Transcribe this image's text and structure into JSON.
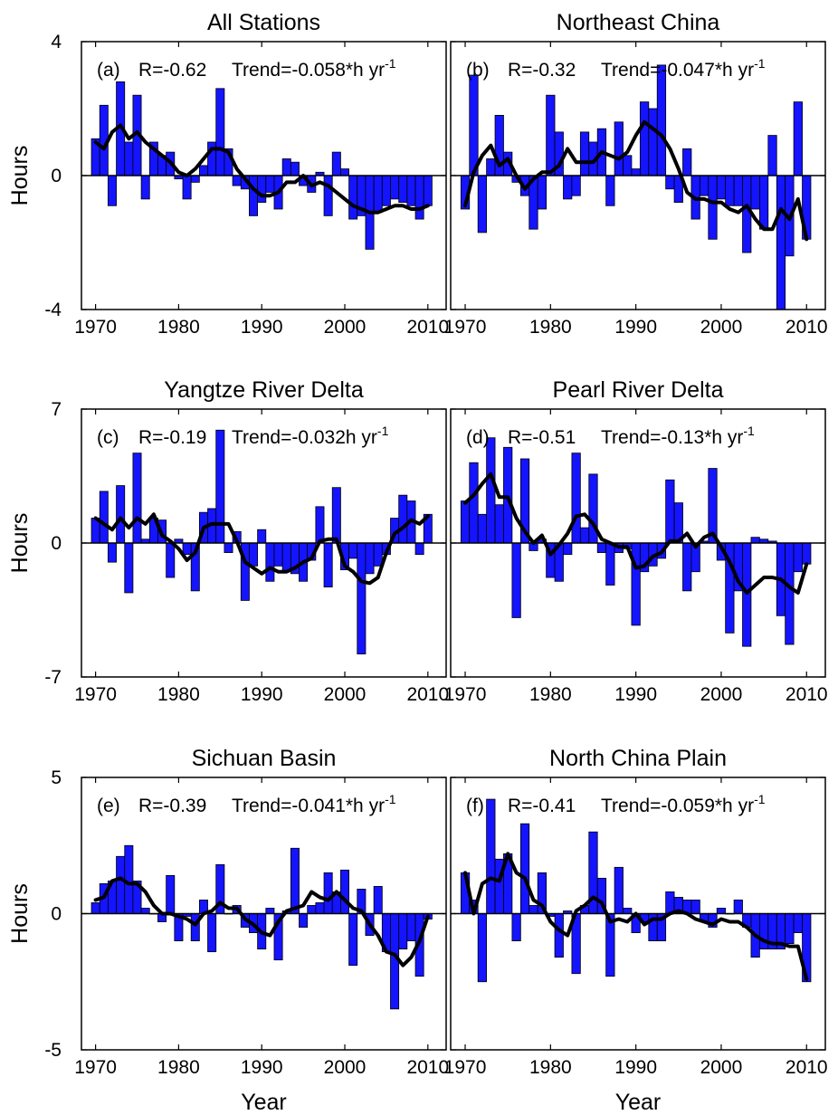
{
  "colors": {
    "bar": "#1414ff",
    "bar_edge": "#000000",
    "line": "#000000",
    "frame": "#000000",
    "zero": "#000000"
  },
  "chart_data": [
    {
      "type": "bar",
      "title": "All Stations",
      "panel": "(a)",
      "r_text": "R=-0.62",
      "trend_text": "Trend=-0.058*h yr",
      "trend_sup": "-1",
      "xlabel": "",
      "ylabel": "Hours",
      "xlim": [
        1968.5,
        1969.5
      ],
      "ylim": [
        -4,
        4
      ],
      "yticks": [
        -4,
        0,
        4
      ],
      "xticks": [
        1970,
        1980,
        1990,
        2000,
        2010
      ],
      "x": [
        1970,
        1971,
        1972,
        1973,
        1974,
        1975,
        1976,
        1977,
        1978,
        1979,
        1980,
        1981,
        1982,
        1983,
        1984,
        1985,
        1986,
        1987,
        1988,
        1989,
        1990,
        1991,
        1992,
        1993,
        1994,
        1995,
        1996,
        1997,
        1998,
        1999,
        2000,
        2001,
        2002,
        2003,
        2004,
        2005,
        2006,
        2007,
        2008,
        2009,
        2010
      ],
      "series": [
        {
          "kind": "bar",
          "values": [
            1.1,
            2.1,
            -0.9,
            2.8,
            1.0,
            2.4,
            -0.7,
            1.0,
            0.6,
            0.7,
            -0.1,
            -0.7,
            -0.2,
            0.3,
            1.0,
            2.6,
            0.8,
            -0.3,
            -0.4,
            -1.2,
            -0.8,
            -0.5,
            -1.0,
            0.5,
            0.4,
            -0.3,
            -0.5,
            0.1,
            -1.2,
            0.7,
            0.2,
            -1.3,
            -1.2,
            -2.2,
            -1.1,
            -0.9,
            -0.7,
            -0.8,
            -0.9,
            -1.3,
            -0.9
          ]
        },
        {
          "kind": "line",
          "values": [
            1.0,
            0.8,
            1.3,
            1.5,
            1.1,
            1.3,
            1.0,
            0.8,
            0.6,
            0.4,
            0.1,
            0.0,
            0.2,
            0.5,
            0.8,
            0.8,
            0.7,
            0.2,
            -0.1,
            -0.4,
            -0.6,
            -0.6,
            -0.5,
            -0.2,
            -0.2,
            0.0,
            -0.3,
            -0.2,
            -0.3,
            -0.5,
            -0.7,
            -0.9,
            -1.0,
            -1.1,
            -1.1,
            -1.0,
            -0.9,
            -0.9,
            -1.0,
            -1.0,
            -0.9
          ]
        }
      ]
    },
    {
      "type": "bar",
      "title": "Northeast China",
      "panel": "(b)",
      "r_text": "R=-0.32",
      "trend_text": "Trend=-0.047*h yr",
      "trend_sup": "-1",
      "xlabel": "",
      "ylabel": "",
      "xlim": [
        1968.5,
        1969.5
      ],
      "ylim": [
        -4,
        4
      ],
      "yticks": [],
      "xticks": [
        1970,
        1980,
        1990,
        2000,
        2010
      ],
      "x": [
        1970,
        1971,
        1972,
        1973,
        1974,
        1975,
        1976,
        1977,
        1978,
        1979,
        1980,
        1981,
        1982,
        1983,
        1984,
        1985,
        1986,
        1987,
        1988,
        1989,
        1990,
        1991,
        1992,
        1993,
        1994,
        1995,
        1996,
        1997,
        1998,
        1999,
        2000,
        2001,
        2002,
        2003,
        2004,
        2005,
        2006,
        2007,
        2008,
        2009,
        2010
      ],
      "series": [
        {
          "kind": "bar",
          "values": [
            -1.0,
            3.0,
            -1.7,
            0.5,
            1.8,
            0.7,
            -0.2,
            -0.6,
            -1.6,
            -1.0,
            2.4,
            1.3,
            -0.7,
            -0.6,
            1.3,
            1.0,
            1.4,
            -0.9,
            1.6,
            0.6,
            0.2,
            2.2,
            2.0,
            3.3,
            -0.4,
            -0.8,
            0.8,
            -1.3,
            -0.6,
            -1.9,
            -0.7,
            -0.9,
            -0.9,
            -2.3,
            -1.0,
            -1.6,
            1.2,
            -4.0,
            -2.4,
            2.2,
            -1.9
          ]
        },
        {
          "kind": "line",
          "values": [
            -0.9,
            0.1,
            0.6,
            0.9,
            0.3,
            0.5,
            0.0,
            -0.4,
            -0.1,
            0.1,
            0.1,
            0.3,
            0.8,
            0.4,
            0.4,
            0.4,
            0.7,
            0.6,
            0.5,
            0.7,
            1.2,
            1.6,
            1.4,
            1.2,
            0.8,
            0.2,
            -0.5,
            -0.7,
            -0.7,
            -0.8,
            -0.8,
            -1.0,
            -1.1,
            -0.9,
            -1.3,
            -1.6,
            -1.6,
            -1.0,
            -1.3,
            -0.7,
            -1.9
          ]
        }
      ]
    },
    {
      "type": "bar",
      "title": "Yangtze River Delta",
      "panel": "(c)",
      "r_text": "R=-0.19",
      "trend_text": "Trend=-0.032h yr",
      "trend_sup": "-1",
      "xlabel": "",
      "ylabel": "Hours",
      "xlim": [
        1968.5,
        1969.5
      ],
      "ylim": [
        -7,
        7
      ],
      "yticks": [
        -7,
        0,
        7
      ],
      "xticks": [
        1970,
        1980,
        1990,
        2000,
        2010
      ],
      "x": [
        1970,
        1971,
        1972,
        1973,
        1974,
        1975,
        1976,
        1977,
        1978,
        1979,
        1980,
        1981,
        1982,
        1983,
        1984,
        1985,
        1986,
        1987,
        1988,
        1989,
        1990,
        1991,
        1992,
        1993,
        1994,
        1995,
        1996,
        1997,
        1998,
        1999,
        2000,
        2001,
        2002,
        2003,
        2004,
        2005,
        2006,
        2007,
        2008,
        2009,
        2010
      ],
      "series": [
        {
          "kind": "bar",
          "values": [
            1.3,
            2.7,
            -1.0,
            3.0,
            -2.6,
            4.7,
            0.2,
            1.3,
            1.2,
            -1.8,
            0.2,
            -0.6,
            -2.5,
            1.6,
            1.8,
            5.9,
            -0.5,
            0.6,
            -3.0,
            -1.2,
            0.7,
            -2.0,
            -1.2,
            -1.5,
            -1.6,
            -2.0,
            -0.9,
            1.9,
            -2.3,
            2.9,
            -1.4,
            -0.8,
            -5.8,
            -1.6,
            -1.2,
            -0.6,
            1.3,
            2.5,
            2.2,
            -0.6,
            1.5
          ]
        },
        {
          "kind": "line",
          "values": [
            1.3,
            1.0,
            0.7,
            1.3,
            0.8,
            1.3,
            1.0,
            1.5,
            0.4,
            0.1,
            -0.3,
            -0.9,
            -0.5,
            0.8,
            1.0,
            1.0,
            1.0,
            0.1,
            -1.0,
            -1.3,
            -1.6,
            -1.3,
            -1.5,
            -1.5,
            -1.3,
            -1.0,
            -0.8,
            0.1,
            0.2,
            0.2,
            -1.2,
            -1.5,
            -2.0,
            -2.1,
            -1.8,
            -0.5,
            0.5,
            0.8,
            1.2,
            1.0,
            1.4
          ]
        }
      ]
    },
    {
      "type": "bar",
      "title": "Pearl River Delta",
      "panel": "(d)",
      "r_text": "R=-0.51",
      "trend_text": "Trend=-0.13*h yr",
      "trend_sup": "-1",
      "xlabel": "",
      "ylabel": "",
      "xlim": [
        1968.5,
        1969.5
      ],
      "ylim": [
        -7,
        7
      ],
      "yticks": [],
      "xticks": [
        1970,
        1980,
        1990,
        2000,
        2010
      ],
      "x": [
        1970,
        1971,
        1972,
        1973,
        1974,
        1975,
        1976,
        1977,
        1978,
        1979,
        1980,
        1981,
        1982,
        1983,
        1984,
        1985,
        1986,
        1987,
        1988,
        1989,
        1990,
        1991,
        1992,
        1993,
        1994,
        1995,
        1996,
        1997,
        1998,
        1999,
        2000,
        2001,
        2002,
        2003,
        2004,
        2005,
        2006,
        2007,
        2008,
        2009,
        2010
      ],
      "series": [
        {
          "kind": "bar",
          "values": [
            2.2,
            4.2,
            1.5,
            5.5,
            2.0,
            5.0,
            -3.9,
            4.4,
            -0.4,
            0.2,
            -1.8,
            -2.0,
            -0.6,
            4.7,
            0.8,
            3.6,
            -0.5,
            -2.2,
            -0.5,
            -0.3,
            -4.3,
            -1.5,
            -1.2,
            -0.8,
            3.3,
            2.1,
            -2.5,
            -1.5,
            0.1,
            3.9,
            -0.9,
            -4.7,
            -2.5,
            -5.4,
            0.3,
            0.2,
            0.1,
            -3.8,
            -5.3,
            -1.5,
            -1.1
          ]
        },
        {
          "kind": "line",
          "values": [
            2.1,
            2.5,
            3.1,
            3.6,
            2.4,
            2.4,
            1.3,
            0.6,
            0.0,
            0.4,
            -0.6,
            -0.1,
            0.5,
            1.4,
            1.5,
            1.0,
            0.2,
            0.0,
            -0.2,
            -0.2,
            -1.3,
            -1.2,
            -0.7,
            -0.5,
            0.1,
            0.1,
            0.5,
            -0.2,
            0.3,
            0.5,
            -0.2,
            -1.0,
            -2.0,
            -2.6,
            -2.2,
            -1.8,
            -1.8,
            -1.9,
            -2.3,
            -2.6,
            -1.1
          ]
        }
      ]
    },
    {
      "type": "bar",
      "title": "Sichuan Basin",
      "panel": "(e)",
      "r_text": "R=-0.39",
      "trend_text": "Trend=-0.041*h yr",
      "trend_sup": "-1",
      "xlabel": "Year",
      "ylabel": "Hours",
      "xlim": [
        1968.5,
        1969.5
      ],
      "ylim": [
        -5,
        5
      ],
      "yticks": [
        -5,
        0,
        5
      ],
      "xticks": [
        1970,
        1980,
        1990,
        2000,
        2010
      ],
      "x": [
        1970,
        1971,
        1972,
        1973,
        1974,
        1975,
        1976,
        1977,
        1978,
        1979,
        1980,
        1981,
        1982,
        1983,
        1984,
        1985,
        1986,
        1987,
        1988,
        1989,
        1990,
        1991,
        1992,
        1993,
        1994,
        1995,
        1996,
        1997,
        1998,
        1999,
        2000,
        2001,
        2002,
        2003,
        2004,
        2005,
        2006,
        2007,
        2008,
        2009,
        2010
      ],
      "series": [
        {
          "kind": "bar",
          "values": [
            0.4,
            1.1,
            1.2,
            2.1,
            2.5,
            1.2,
            0.2,
            0.0,
            -0.3,
            1.4,
            -1.0,
            -0.1,
            -1.0,
            0.5,
            -1.4,
            1.8,
            0.0,
            0.3,
            -0.5,
            -0.7,
            -1.3,
            0.2,
            -1.7,
            0.1,
            2.4,
            -0.5,
            0.3,
            0.4,
            1.5,
            0.8,
            1.6,
            -1.9,
            0.9,
            -0.8,
            1.0,
            -1.4,
            -3.5,
            -1.3,
            -1.0,
            -2.3,
            -0.2
          ]
        },
        {
          "kind": "line",
          "values": [
            0.5,
            0.6,
            1.2,
            1.3,
            1.1,
            1.1,
            0.8,
            0.3,
            0.0,
            0.0,
            -0.1,
            -0.2,
            -0.4,
            0.0,
            0.1,
            0.4,
            0.2,
            0.2,
            -0.2,
            -0.4,
            -0.7,
            -0.8,
            -0.3,
            0.1,
            0.2,
            0.3,
            0.8,
            0.6,
            0.5,
            0.8,
            0.5,
            0.2,
            0.1,
            -0.4,
            -0.8,
            -1.4,
            -1.5,
            -1.9,
            -1.6,
            -1.0,
            -0.1
          ]
        }
      ]
    },
    {
      "type": "bar",
      "title": "North China Plain",
      "panel": "(f)",
      "r_text": "R=-0.41",
      "trend_text": "Trend=-0.059*h yr",
      "trend_sup": "-1",
      "xlabel": "Year",
      "ylabel": "",
      "xlim": [
        1968.5,
        1969.5
      ],
      "ylim": [
        -5,
        5
      ],
      "yticks": [],
      "xticks": [
        1970,
        1980,
        1990,
        2000,
        2010
      ],
      "x": [
        1970,
        1971,
        1972,
        1973,
        1974,
        1975,
        1976,
        1977,
        1978,
        1979,
        1980,
        1981,
        1982,
        1983,
        1984,
        1985,
        1986,
        1987,
        1988,
        1989,
        1990,
        1991,
        1992,
        1993,
        1994,
        1995,
        1996,
        1997,
        1998,
        1999,
        2000,
        2001,
        2002,
        2003,
        2004,
        2005,
        2006,
        2007,
        2008,
        2009,
        2010
      ],
      "series": [
        {
          "kind": "bar",
          "values": [
            1.5,
            0.5,
            -2.5,
            4.2,
            2.0,
            2.2,
            -1.0,
            3.3,
            0.3,
            1.5,
            -0.1,
            -1.6,
            0.1,
            -2.2,
            0.3,
            3.0,
            1.3,
            -2.3,
            1.7,
            0.2,
            -0.7,
            -0.3,
            -1.0,
            -1.0,
            0.8,
            0.6,
            0.5,
            0.5,
            -0.3,
            -0.5,
            0.2,
            0.0,
            0.5,
            -0.5,
            -1.6,
            -1.3,
            -1.3,
            -1.3,
            -1.1,
            -0.7,
            -2.5
          ]
        },
        {
          "kind": "line",
          "values": [
            1.5,
            0.0,
            1.1,
            1.3,
            1.2,
            2.2,
            1.5,
            1.3,
            0.5,
            0.3,
            -0.3,
            -0.6,
            -0.8,
            0.1,
            0.3,
            0.6,
            0.4,
            -0.3,
            -0.2,
            -0.3,
            0.0,
            -0.4,
            -0.2,
            -0.2,
            0.0,
            0.1,
            0.0,
            -0.2,
            -0.3,
            -0.4,
            -0.2,
            -0.3,
            -0.3,
            -0.5,
            -0.8,
            -1.0,
            -1.1,
            -1.1,
            -1.2,
            -1.2,
            -2.4
          ]
        }
      ]
    }
  ]
}
